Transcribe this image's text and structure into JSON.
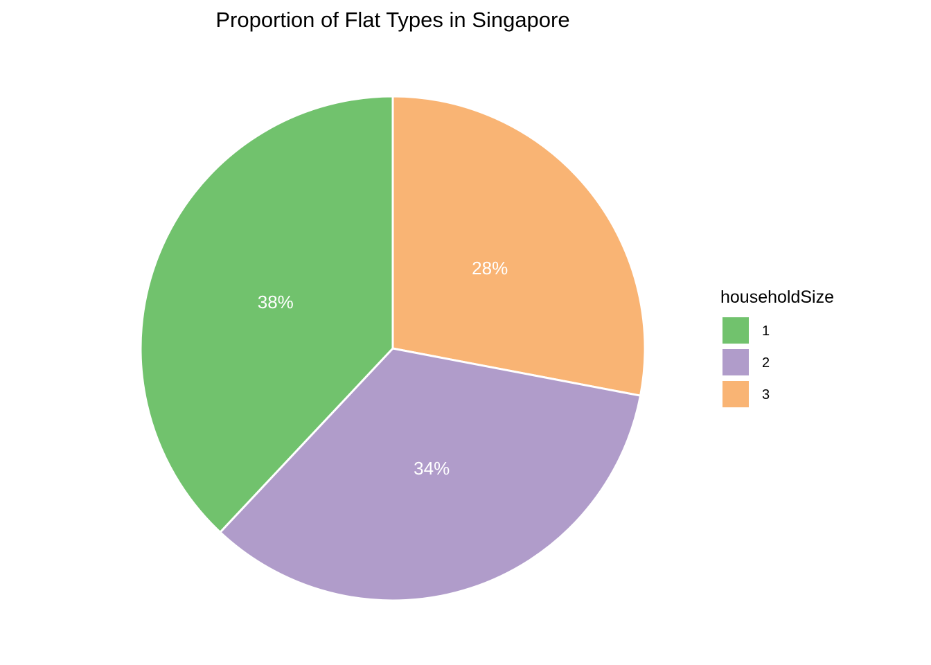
{
  "chart_data": {
    "type": "pie",
    "title": "Proportion of Flat Types in Singapore",
    "legend_title": "householdSize",
    "legend_position": "right",
    "start": "top, clockwise",
    "slices": [
      {
        "category": "1",
        "value": 38,
        "label": "38%",
        "color": "#71C26D"
      },
      {
        "category": "2",
        "value": 34,
        "label": "34%",
        "color": "#B09CCA"
      },
      {
        "category": "3",
        "value": 28,
        "label": "28%",
        "color": "#F9B474"
      }
    ],
    "slice_order": [
      "3",
      "2",
      "1"
    ],
    "border_color": "#ffffff"
  }
}
